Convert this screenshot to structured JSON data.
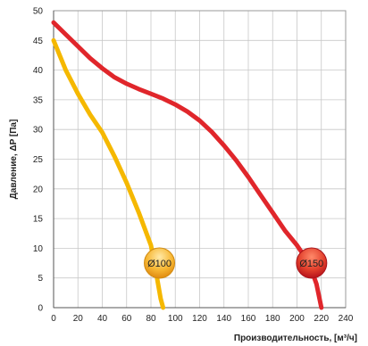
{
  "chart_data": {
    "type": "line",
    "xlabel": "Производительность, [м³/ч]",
    "ylabel": "Давление, ΔP [Па]",
    "xlim": [
      0,
      240
    ],
    "ylim": [
      0,
      50
    ],
    "x_ticks": [
      "0",
      "20",
      "40",
      "60",
      "80",
      "100",
      "120",
      "140",
      "160",
      "180",
      "200",
      "220",
      "240"
    ],
    "y_ticks": [
      "0",
      "5",
      "10",
      "15",
      "20",
      "25",
      "30",
      "35",
      "40",
      "45",
      "50"
    ],
    "grid": true,
    "series": [
      {
        "name": "Ø100",
        "color": "#f5b800",
        "label_at": [
          87,
          7.5
        ],
        "points": [
          [
            0,
            45
          ],
          [
            10,
            40
          ],
          [
            20,
            36
          ],
          [
            30,
            32.5
          ],
          [
            40,
            29.5
          ],
          [
            50,
            25.5
          ],
          [
            60,
            21
          ],
          [
            70,
            16
          ],
          [
            80,
            10.5
          ],
          [
            85,
            5
          ],
          [
            88,
            1.5
          ],
          [
            90,
            0
          ]
        ]
      },
      {
        "name": "Ø150",
        "color": "#e0262b",
        "label_at": [
          212,
          7.5
        ],
        "points": [
          [
            0,
            48
          ],
          [
            10,
            46
          ],
          [
            20,
            44
          ],
          [
            30,
            42
          ],
          [
            40,
            40.3
          ],
          [
            50,
            38.8
          ],
          [
            60,
            37.7
          ],
          [
            70,
            36.8
          ],
          [
            80,
            36
          ],
          [
            90,
            35.2
          ],
          [
            100,
            34.2
          ],
          [
            110,
            33
          ],
          [
            120,
            31.5
          ],
          [
            130,
            29.6
          ],
          [
            140,
            27.3
          ],
          [
            150,
            24.8
          ],
          [
            160,
            22
          ],
          [
            170,
            19
          ],
          [
            180,
            16
          ],
          [
            190,
            13
          ],
          [
            200,
            10.5
          ],
          [
            210,
            7.5
          ],
          [
            216,
            4
          ],
          [
            220,
            0
          ]
        ]
      }
    ]
  }
}
